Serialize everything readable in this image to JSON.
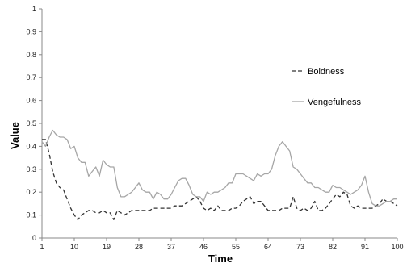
{
  "chart_data": {
    "type": "line",
    "xlabel": "Time",
    "ylabel": "Value",
    "xlim": [
      1,
      100
    ],
    "ylim": [
      0,
      1
    ],
    "x_ticks": [
      1,
      10,
      19,
      28,
      37,
      46,
      55,
      64,
      73,
      82,
      91,
      100
    ],
    "y_ticks": [
      "0",
      "0.1",
      "0.2",
      "0.3",
      "0.4",
      "0.5",
      "0.6",
      "0.7",
      "0.8",
      "0.9",
      "1"
    ],
    "grid": false,
    "legend_position": "right",
    "series": [
      {
        "name": "Boldness",
        "style": "dashed",
        "color": "#333333",
        "x": [
          1,
          2,
          3,
          4,
          5,
          6,
          7,
          8,
          9,
          10,
          11,
          12,
          13,
          14,
          15,
          16,
          17,
          18,
          19,
          20,
          21,
          22,
          23,
          24,
          25,
          26,
          27,
          28,
          29,
          30,
          31,
          32,
          33,
          34,
          35,
          36,
          37,
          38,
          39,
          40,
          41,
          42,
          43,
          44,
          45,
          46,
          47,
          48,
          49,
          50,
          51,
          52,
          53,
          54,
          55,
          56,
          57,
          58,
          59,
          60,
          61,
          62,
          63,
          64,
          65,
          66,
          67,
          68,
          69,
          70,
          71,
          72,
          73,
          74,
          75,
          76,
          77,
          78,
          79,
          80,
          81,
          82,
          83,
          84,
          85,
          86,
          87,
          88,
          89,
          90,
          91,
          92,
          93,
          94,
          95,
          96,
          97,
          98,
          99,
          100
        ],
        "values": [
          0.43,
          0.43,
          0.37,
          0.29,
          0.24,
          0.22,
          0.21,
          0.17,
          0.13,
          0.1,
          0.08,
          0.1,
          0.11,
          0.12,
          0.12,
          0.11,
          0.11,
          0.12,
          0.11,
          0.11,
          0.08,
          0.12,
          0.11,
          0.1,
          0.11,
          0.12,
          0.12,
          0.12,
          0.12,
          0.12,
          0.12,
          0.13,
          0.13,
          0.13,
          0.13,
          0.13,
          0.13,
          0.14,
          0.14,
          0.14,
          0.15,
          0.16,
          0.17,
          0.18,
          0.16,
          0.13,
          0.12,
          0.13,
          0.12,
          0.14,
          0.12,
          0.12,
          0.12,
          0.13,
          0.13,
          0.14,
          0.16,
          0.17,
          0.18,
          0.15,
          0.16,
          0.16,
          0.14,
          0.12,
          0.12,
          0.12,
          0.12,
          0.13,
          0.13,
          0.13,
          0.18,
          0.13,
          0.12,
          0.13,
          0.12,
          0.13,
          0.16,
          0.12,
          0.12,
          0.13,
          0.15,
          0.17,
          0.19,
          0.18,
          0.2,
          0.19,
          0.14,
          0.13,
          0.14,
          0.13,
          0.13,
          0.13,
          0.13,
          0.14,
          0.15,
          0.17,
          0.16,
          0.16,
          0.15,
          0.14
        ]
      },
      {
        "name": "Vengefulness",
        "style": "solid",
        "color": "#a6a6a6",
        "x": [
          1,
          2,
          3,
          4,
          5,
          6,
          7,
          8,
          9,
          10,
          11,
          12,
          13,
          14,
          15,
          16,
          17,
          18,
          19,
          20,
          21,
          22,
          23,
          24,
          25,
          26,
          27,
          28,
          29,
          30,
          31,
          32,
          33,
          34,
          35,
          36,
          37,
          38,
          39,
          40,
          41,
          42,
          43,
          44,
          45,
          46,
          47,
          48,
          49,
          50,
          51,
          52,
          53,
          54,
          55,
          56,
          57,
          58,
          59,
          60,
          61,
          62,
          63,
          64,
          65,
          66,
          67,
          68,
          69,
          70,
          71,
          72,
          73,
          74,
          75,
          76,
          77,
          78,
          79,
          80,
          81,
          82,
          83,
          84,
          85,
          86,
          87,
          88,
          89,
          90,
          91,
          92,
          93,
          94,
          95,
          96,
          97,
          98,
          99,
          100
        ],
        "values": [
          0.42,
          0.4,
          0.44,
          0.47,
          0.45,
          0.44,
          0.44,
          0.43,
          0.39,
          0.4,
          0.35,
          0.33,
          0.33,
          0.27,
          0.29,
          0.31,
          0.27,
          0.34,
          0.32,
          0.31,
          0.31,
          0.22,
          0.18,
          0.18,
          0.19,
          0.2,
          0.22,
          0.24,
          0.21,
          0.2,
          0.2,
          0.17,
          0.2,
          0.19,
          0.17,
          0.17,
          0.19,
          0.22,
          0.25,
          0.26,
          0.26,
          0.23,
          0.19,
          0.18,
          0.18,
          0.16,
          0.2,
          0.19,
          0.2,
          0.2,
          0.21,
          0.22,
          0.24,
          0.24,
          0.28,
          0.28,
          0.28,
          0.27,
          0.26,
          0.25,
          0.28,
          0.27,
          0.28,
          0.28,
          0.3,
          0.36,
          0.4,
          0.42,
          0.4,
          0.38,
          0.31,
          0.3,
          0.28,
          0.26,
          0.24,
          0.24,
          0.22,
          0.22,
          0.21,
          0.2,
          0.2,
          0.23,
          0.22,
          0.22,
          0.21,
          0.2,
          0.19,
          0.2,
          0.21,
          0.23,
          0.27,
          0.2,
          0.15,
          0.14,
          0.14,
          0.15,
          0.16,
          0.16,
          0.17,
          0.17
        ]
      }
    ]
  }
}
